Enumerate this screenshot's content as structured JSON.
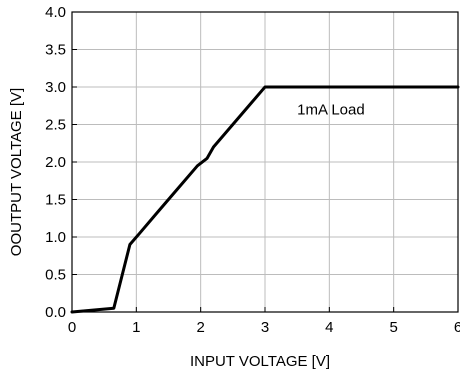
{
  "chart_data": {
    "type": "line",
    "xlabel": "INPUT VOLTAGE [V]",
    "ylabel": "OOUTPUT VOLTAGE [V]",
    "xlim": [
      0,
      6
    ],
    "ylim": [
      0,
      4
    ],
    "xticks": [
      0,
      1,
      2,
      3,
      4,
      5,
      6
    ],
    "xtick_labels": [
      "0",
      "1",
      "2",
      "3",
      "4",
      "5",
      "6"
    ],
    "yticks": [
      0,
      0.5,
      1,
      1.5,
      2,
      2.5,
      3,
      3.5,
      4
    ],
    "ytick_labels": [
      "0.0",
      "0.5",
      "1.0",
      "1.5",
      "2.0",
      "2.5",
      "3.0",
      "3.5",
      "4.0"
    ],
    "grid": true,
    "annotation": {
      "text": "1mA Load",
      "x": 3.5,
      "y": 2.7
    },
    "series": [
      {
        "line_color": "#000000",
        "x": [
          0,
          0.65,
          0.9,
          1.05,
          1.3,
          1.6,
          1.95,
          2.1,
          2.2,
          2.5,
          2.8,
          2.97,
          3.0,
          4.0,
          5.0,
          6.0
        ],
        "y": [
          0,
          0.05,
          0.9,
          1.05,
          1.3,
          1.6,
          1.95,
          2.05,
          2.2,
          2.5,
          2.8,
          2.97,
          3.0,
          3.0,
          3.0,
          3.0
        ]
      }
    ]
  }
}
